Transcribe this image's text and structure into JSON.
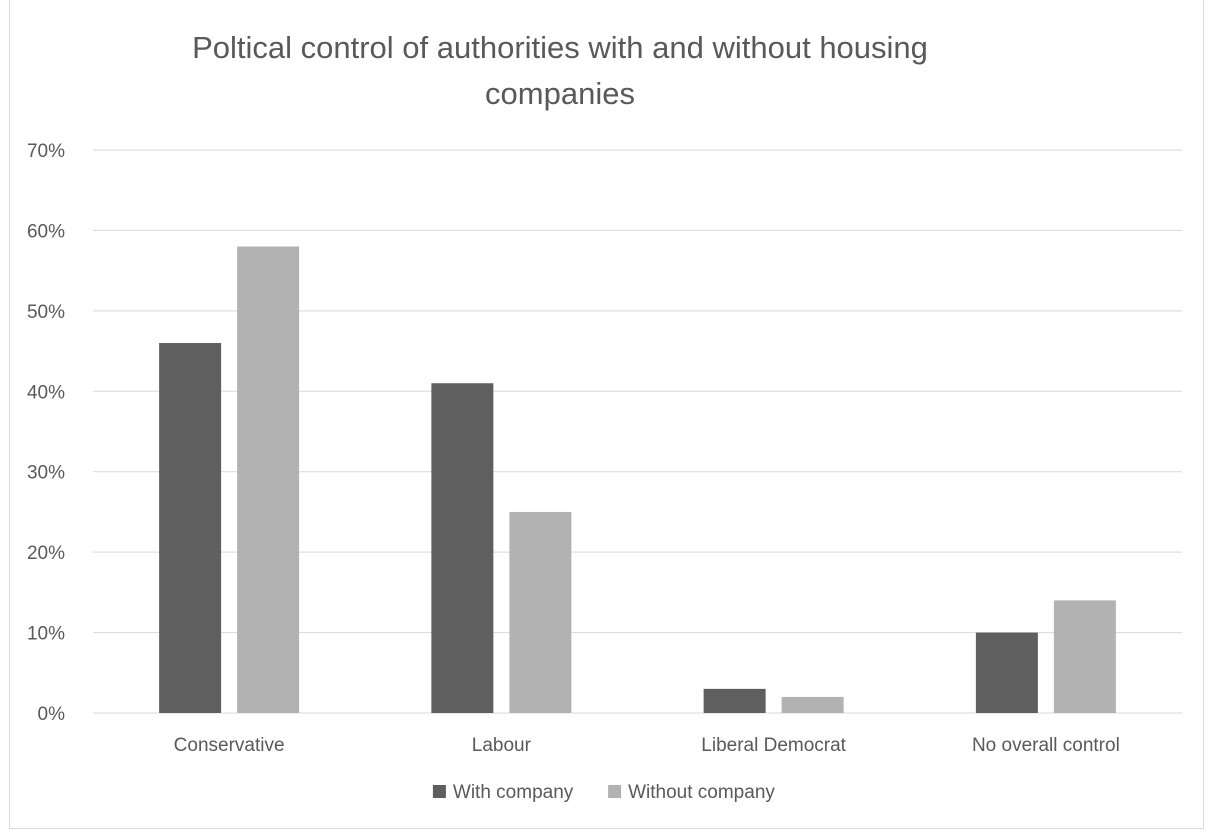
{
  "chart_data": {
    "type": "bar",
    "title_lines": [
      "Poltical control of authorities with and without housing",
      "companies"
    ],
    "categories": [
      "Conservative",
      "Labour",
      "Liberal Democrat",
      "No overall control"
    ],
    "series": [
      {
        "name": "With company",
        "values": [
          46,
          41,
          3,
          10
        ],
        "color": "#5f5f5f"
      },
      {
        "name": "Without company",
        "values": [
          58,
          25,
          2,
          14
        ],
        "color": "#b2b2b2"
      }
    ],
    "y_ticks": [
      "0%",
      "10%",
      "20%",
      "30%",
      "40%",
      "50%",
      "60%",
      "70%"
    ],
    "ylim": [
      0,
      70
    ],
    "y_unit": "%",
    "grid": true,
    "legend_position": "bottom",
    "colors": {
      "grid": "#d9d9d9",
      "text": "#595959"
    }
  }
}
